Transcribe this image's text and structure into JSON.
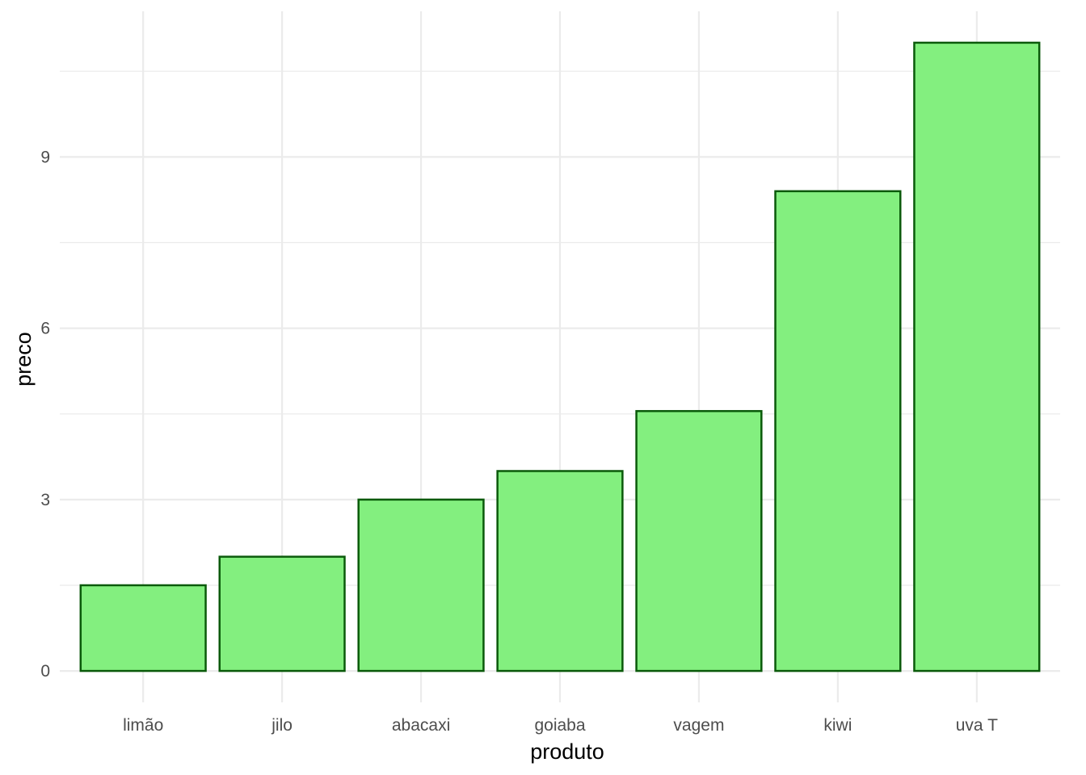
{
  "chart_data": {
    "type": "bar",
    "categories": [
      "limão",
      "jilo",
      "abacaxi",
      "goiaba",
      "vagem",
      "kiwi",
      "uva T"
    ],
    "values": [
      1.5,
      2.0,
      3.0,
      3.5,
      4.55,
      8.4,
      11.0
    ],
    "xlabel": "produto",
    "ylabel": "preco",
    "yticks": [
      0,
      3,
      6,
      9
    ],
    "ylim": [
      -0.55,
      11.55
    ],
    "grid": true,
    "legend": "none",
    "colors": {
      "bar_fill": "#83ef7f",
      "bar_stroke": "#0a5a0a",
      "grid": "#ebebeb",
      "tick_text": "#4d4d4d",
      "title_text": "#000000"
    }
  }
}
